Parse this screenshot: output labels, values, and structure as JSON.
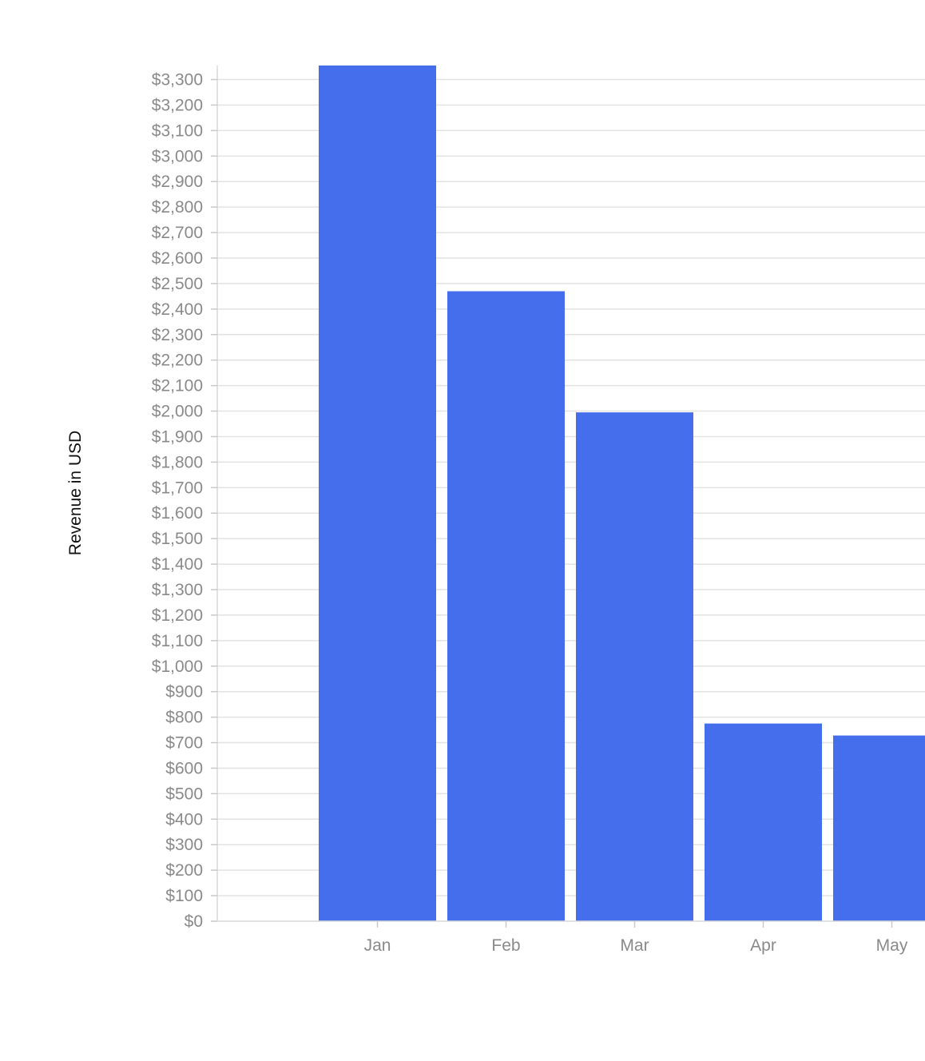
{
  "chart_data": {
    "type": "bar",
    "categories": [
      "Jan",
      "Feb",
      "Mar",
      "Apr",
      "May"
    ],
    "series": [
      {
        "values": [
          3355,
          2470,
          1995,
          775,
          728
        ],
        "color": "#456eed"
      }
    ],
    "ylabel": "Revenue in USD",
    "xlabel": "",
    "ylim": [
      0,
      3355
    ],
    "ytick_step": 100,
    "ytick_format": "currency-usd",
    "grid": true,
    "legend": "none"
  }
}
